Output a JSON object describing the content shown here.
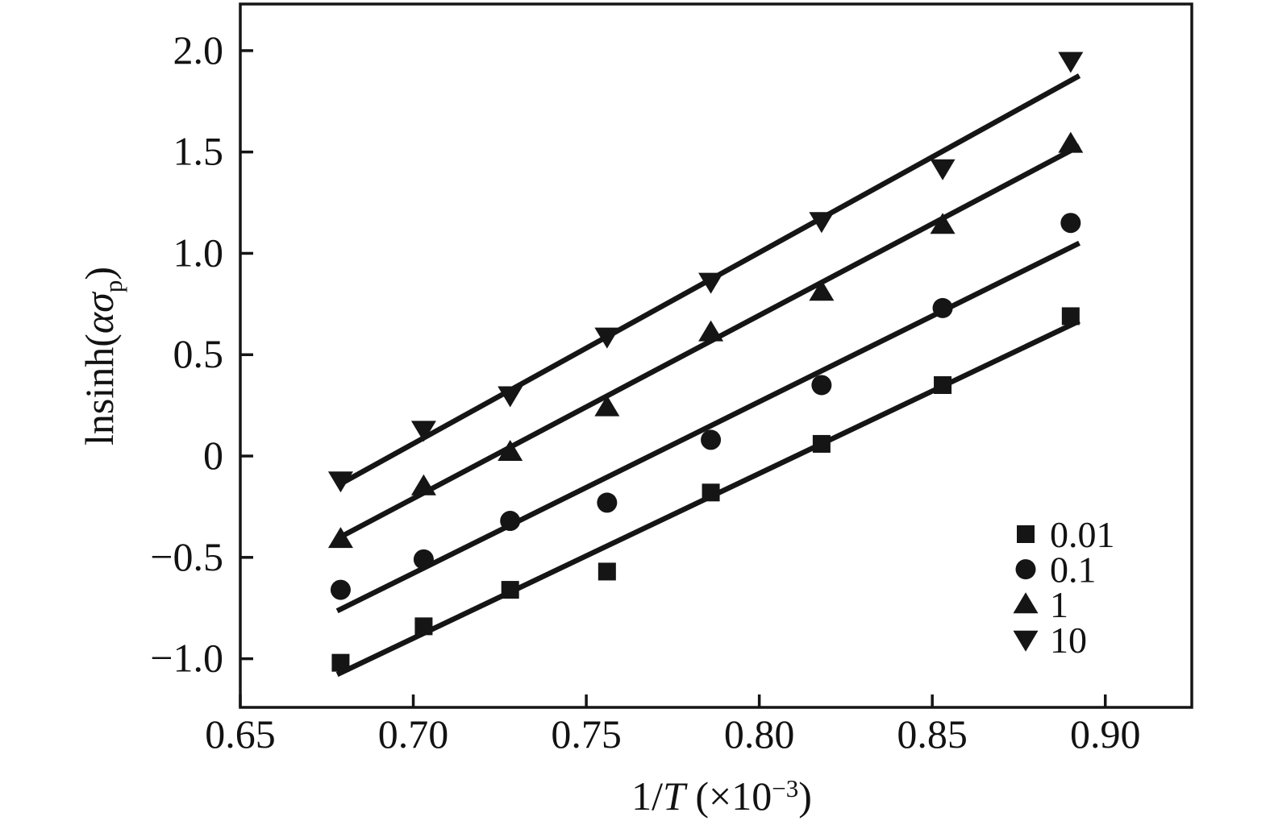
{
  "figure": {
    "background": "#ffffff",
    "ink_color": "#151515"
  },
  "chart_data": {
    "type": "scatter",
    "title": "",
    "xlabel": "1/T (×10⁻³)",
    "ylabel": "lnsinh(ασp)",
    "xlabel_parts": [
      {
        "t": "1/"
      },
      {
        "t": "T",
        "style": "italic"
      },
      {
        "t": " (×10"
      },
      {
        "t": "−3",
        "pos": "sup"
      },
      {
        "t": ")"
      }
    ],
    "ylabel_parts": [
      {
        "t": "lnsinh("
      },
      {
        "t": "α",
        "style": "italic"
      },
      {
        "t": "σ",
        "style": "italic"
      },
      {
        "t": "p",
        "pos": "sub"
      },
      {
        "t": ")"
      }
    ],
    "grid": false,
    "legend_position": "bottom-right",
    "x_axis": {
      "range": [
        0.65,
        0.925
      ],
      "ticks": [
        0.65,
        0.7,
        0.75,
        0.8,
        0.85,
        0.9
      ],
      "tick_labels": [
        "0.65",
        "0.70",
        "0.75",
        "0.80",
        "0.85",
        "0.90"
      ]
    },
    "y_axis": {
      "range": [
        -1.24,
        2.23
      ],
      "ticks": [
        -1.0,
        -0.5,
        0,
        0.5,
        1.0,
        1.5,
        2.0
      ],
      "tick_labels": [
        "−1.0",
        "−0.5",
        "0",
        "0.5",
        "1.0",
        "1.5",
        "2.0"
      ]
    },
    "x": [
      0.679,
      0.703,
      0.728,
      0.756,
      0.786,
      0.818,
      0.853,
      0.89
    ],
    "series": [
      {
        "label": "0.01",
        "marker": "square",
        "y": [
          -1.02,
          -0.84,
          -0.66,
          -0.57,
          -0.18,
          0.06,
          0.35,
          0.69
        ],
        "fit": {
          "slope": 8.13,
          "intercept": -6.59
        }
      },
      {
        "label": "0.1",
        "marker": "circle",
        "y": [
          -0.66,
          -0.51,
          -0.32,
          -0.23,
          0.08,
          0.35,
          0.73,
          1.15
        ],
        "fit": {
          "slope": 8.46,
          "intercept": -6.5
        }
      },
      {
        "label": "1",
        "marker": "triangle-up",
        "y": [
          -0.41,
          -0.15,
          0.02,
          0.24,
          0.61,
          0.81,
          1.14,
          1.54
        ],
        "fit": {
          "slope": 9.03,
          "intercept": -6.53
        }
      },
      {
        "label": "10",
        "marker": "triangle-down",
        "y": [
          -0.12,
          0.13,
          0.3,
          0.59,
          0.86,
          1.16,
          1.42,
          1.95
        ],
        "fit": {
          "slope": 9.43,
          "intercept": -6.54
        }
      }
    ],
    "fit_x_range": [
      0.678,
      0.8925
    ]
  }
}
